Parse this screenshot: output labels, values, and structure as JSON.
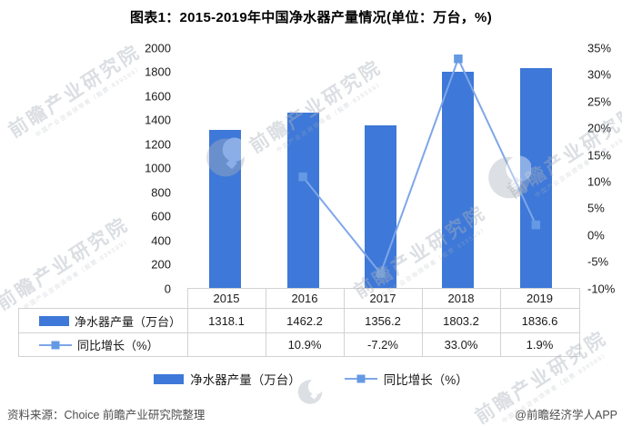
{
  "title": "图表1：2015-2019年中国净水器产量情况(单位：万台，%)",
  "colors": {
    "bar": "#3e78d8",
    "line": "#7ea6e8",
    "marker": "#649ae4",
    "table_border": "#d2d2d2",
    "watermark": "#aab3bc"
  },
  "chart_data": {
    "type": "combo",
    "categories": [
      "2015",
      "2016",
      "2017",
      "2018",
      "2019"
    ],
    "series": [
      {
        "name": "净水器产量（万台）",
        "type": "bar",
        "axis": "left",
        "values": [
          1318.1,
          1462.2,
          1356.2,
          1803.2,
          1836.6
        ]
      },
      {
        "name": "同比增长（%）",
        "type": "line",
        "axis": "right",
        "values": [
          null,
          10.9,
          -7.2,
          33.0,
          1.9
        ]
      }
    ],
    "title": "图表1：2015-2019年中国净水器产量情况(单位：万台，%)",
    "xlabel": "",
    "ylabel": "",
    "left_axis": {
      "min": 0,
      "max": 2000,
      "step": 200,
      "ticks": [
        "2000",
        "1800",
        "1600",
        "1400",
        "1200",
        "1000",
        "800",
        "600",
        "400",
        "200",
        "0"
      ]
    },
    "right_axis": {
      "min": -10,
      "max": 35,
      "step": 5,
      "ticks": [
        "35%",
        "30%",
        "25%",
        "20%",
        "15%",
        "10%",
        "5%",
        "0%",
        "-5%",
        "-10%"
      ]
    },
    "grid": false,
    "legend_position": "bottom"
  },
  "table": {
    "years": [
      "2015",
      "2016",
      "2017",
      "2018",
      "2019"
    ],
    "rows": [
      {
        "label": "净水器产量（万台）",
        "swatch": "bar",
        "values": [
          "1318.1",
          "1462.2",
          "1356.2",
          "1803.2",
          "1836.6"
        ]
      },
      {
        "label": "同比增长（%）",
        "swatch": "line",
        "values": [
          "",
          "10.9%",
          "-7.2%",
          "33.0%",
          "1.9%"
        ]
      }
    ]
  },
  "legend": {
    "items": [
      {
        "label": "净水器产量（万台）",
        "type": "bar"
      },
      {
        "label": "同比增长（%）",
        "type": "line"
      }
    ]
  },
  "footer": {
    "source": "资料来源：Choice 前瞻产业研究院整理",
    "credit": "@前瞻经济学人APP"
  },
  "watermark": {
    "text": "前瞻产业研究院",
    "subtext": "中国产业咨询领导者（股票·839599）"
  }
}
